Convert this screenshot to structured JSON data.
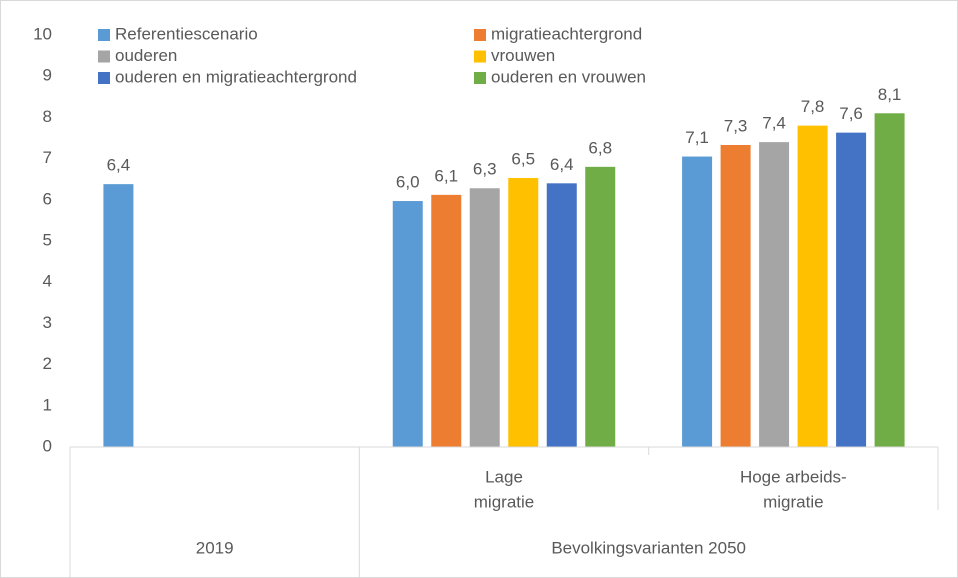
{
  "chart_data": {
    "type": "bar",
    "categories": [
      null,
      [
        "Lage",
        "migratie"
      ],
      [
        "Hoge arbeids-",
        "migratie"
      ]
    ],
    "group_labels": [
      "2019",
      "Bevolkingsvarianten 2050"
    ],
    "category_groups": [
      0,
      1,
      1
    ],
    "series": [
      {
        "name": "Referentiescenario",
        "color": "#5b9bd5",
        "values": [
          6.38,
          5.97,
          7.05
        ],
        "value_labels": [
          "6,4",
          "6,0",
          "7,1"
        ]
      },
      {
        "name": "migratieachtergrond",
        "color": "#ed7d31",
        "values": [
          null,
          6.12,
          7.33
        ],
        "value_labels": [
          null,
          "6,1",
          "7,3"
        ]
      },
      {
        "name": "ouderen",
        "color": "#a5a5a5",
        "values": [
          null,
          6.28,
          7.4
        ],
        "value_labels": [
          null,
          "6,3",
          "7,4"
        ]
      },
      {
        "name": "vrouwen",
        "color": "#ffc000",
        "values": [
          null,
          6.53,
          7.8
        ],
        "value_labels": [
          null,
          "6,5",
          "7,8"
        ]
      },
      {
        "name": "ouderen en migratieachtergrond",
        "color": "#4472c4",
        "values": [
          null,
          6.4,
          7.63
        ],
        "value_labels": [
          null,
          "6,4",
          "7,6"
        ]
      },
      {
        "name": "ouderen en vrouwen",
        "color": "#70ad47",
        "values": [
          null,
          6.8,
          8.1
        ],
        "value_labels": [
          null,
          "6,8",
          "8,1"
        ]
      }
    ],
    "ylim": [
      0,
      10
    ],
    "yticks": [
      0,
      1,
      2,
      3,
      4,
      5,
      6,
      7,
      8,
      9,
      10
    ],
    "grid": false,
    "legend": "top"
  }
}
